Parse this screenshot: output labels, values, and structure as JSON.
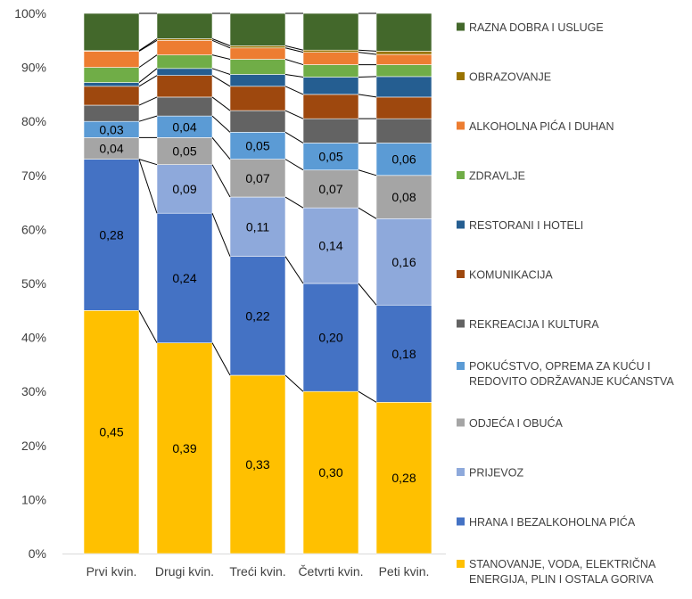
{
  "chart_data": {
    "type": "bar",
    "stacked": true,
    "percent": true,
    "categories": [
      "Prvi kvin.",
      "Drugi kvin.",
      "Treći kvin.",
      "Četvrti kvin.",
      "Peti kvin."
    ],
    "ylim": [
      0,
      1
    ],
    "y_ticks": [
      "0%",
      "10%",
      "20%",
      "30%",
      "40%",
      "50%",
      "60%",
      "70%",
      "80%",
      "90%",
      "100%"
    ],
    "grid": false,
    "legend_position": "right",
    "series": [
      {
        "name": "STANOVANJE, VODA, ELEKTRIČNA ENERGIJA, PLIN I OSTALA GORIVA",
        "legend_lines": [
          "STANOVANJE, VODA, ELEKTRIČNA",
          "ENERGIJA, PLIN I OSTALA GORIVA"
        ],
        "color": "#FFC000",
        "values": [
          0.45,
          0.39,
          0.33,
          0.3,
          0.28
        ],
        "labels": [
          "0,45",
          "0,39",
          "0,33",
          "0,30",
          "0,28"
        ]
      },
      {
        "name": "HRANA I BEZALKOHOLNA PIĆA",
        "legend_lines": [
          "HRANA I BEZALKOHOLNA PIĆA"
        ],
        "color": "#4472C4",
        "values": [
          0.28,
          0.24,
          0.22,
          0.2,
          0.18
        ],
        "labels": [
          "0,28",
          "0,24",
          "0,22",
          "0,20",
          "0,18"
        ]
      },
      {
        "name": "PRIJEVOZ",
        "legend_lines": [
          "PRIJEVOZ"
        ],
        "color": "#8EA9DB",
        "values": [
          0.0,
          0.09,
          0.11,
          0.14,
          0.16
        ],
        "labels": [
          "",
          "0,09",
          "0,11",
          "0,14",
          "0,16"
        ]
      },
      {
        "name": "ODJEĆA I OBUĆA",
        "legend_lines": [
          "ODJEĆA I OBUĆA"
        ],
        "color": "#A5A5A5",
        "values": [
          0.04,
          0.05,
          0.07,
          0.07,
          0.08
        ],
        "labels": [
          "0,04",
          "0,05",
          "0,07",
          "0,07",
          "0,08"
        ]
      },
      {
        "name": "POKUĆSTVO, OPREMA ZA KUĆU I REDOVITO ODRŽAVANJE KUĆANSTVA",
        "legend_lines": [
          "POKUĆSTVO, OPREMA ZA KUĆU I",
          "REDOVITO ODRŽAVANJE KUĆANSTVA"
        ],
        "color": "#5B9BD5",
        "values": [
          0.03,
          0.04,
          0.05,
          0.05,
          0.06
        ],
        "labels": [
          "0,03",
          "0,04",
          "0,05",
          "0,05",
          "0,06"
        ]
      },
      {
        "name": "REKREACIJA I KULTURA",
        "legend_lines": [
          "REKREACIJA I KULTURA"
        ],
        "color": "#636363",
        "values": [
          0.03,
          0.035,
          0.04,
          0.045,
          0.045
        ],
        "labels": [
          "",
          "",
          "",
          "",
          ""
        ]
      },
      {
        "name": "KOMUNIKACIJA",
        "legend_lines": [
          "KOMUNIKACIJA"
        ],
        "color": "#9E480E",
        "values": [
          0.035,
          0.04,
          0.045,
          0.045,
          0.04
        ],
        "labels": [
          "",
          "",
          "",
          "",
          ""
        ]
      },
      {
        "name": "RESTORANI I HOTELI",
        "legend_lines": [
          "RESTORANI I HOTELI"
        ],
        "color": "#255E91",
        "values": [
          0.007,
          0.013,
          0.022,
          0.032,
          0.038
        ],
        "labels": [
          "",
          "",
          "",
          "",
          ""
        ]
      },
      {
        "name": "ZDRAVLJE",
        "legend_lines": [
          "ZDRAVLJE"
        ],
        "color": "#70AD47",
        "values": [
          0.028,
          0.025,
          0.028,
          0.023,
          0.022
        ],
        "labels": [
          "",
          "",
          "",
          "",
          ""
        ]
      },
      {
        "name": "ALKOHOLNA PIĆA I DUHAN",
        "legend_lines": [
          "ALKOHOLNA PIĆA I DUHAN"
        ],
        "color": "#ED7D31",
        "values": [
          0.03,
          0.027,
          0.021,
          0.023,
          0.019
        ],
        "labels": [
          "",
          "",
          "",
          "",
          ""
        ]
      },
      {
        "name": "OBRAZOVANJE",
        "legend_lines": [
          "OBRAZOVANJE"
        ],
        "color": "#997300",
        "values": [
          0.001,
          0.003,
          0.004,
          0.004,
          0.006
        ],
        "labels": [
          "",
          "",
          "",
          "",
          ""
        ]
      },
      {
        "name": "RAZNA DOBRA I USLUGE",
        "legend_lines": [
          "RAZNA DOBRA I USLUGE"
        ],
        "color": "#43682B",
        "values": [
          0.039,
          0.05,
          0.06,
          0.068,
          0.062
        ],
        "labels": [
          "",
          "",
          "",
          "",
          ""
        ]
      }
    ]
  }
}
